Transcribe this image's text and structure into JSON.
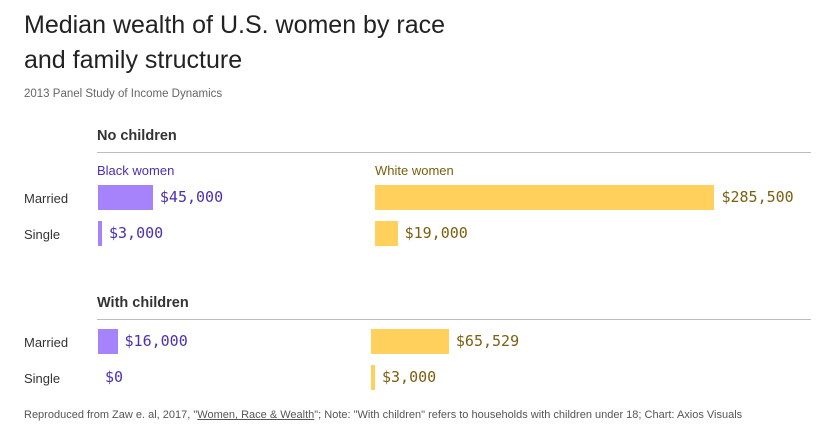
{
  "chart_data": {
    "type": "bar",
    "title": "Median wealth of U.S. women by race and family structure",
    "subtitle": "2013 Panel Study of Income Dynamics",
    "colors": {
      "black_women": "#a682fb",
      "white_women": "#ffd15c",
      "black_text": "#4d2fb0",
      "white_text": "#7a5f10"
    },
    "series": [
      {
        "name": "Black women",
        "color_key": "black_women"
      },
      {
        "name": "White women",
        "color_key": "white_women"
      }
    ],
    "panels": [
      {
        "title": "No children",
        "rows": [
          {
            "label": "Married",
            "values": [
              45000,
              285500
            ],
            "value_labels": [
              "$45,000",
              "$285,500"
            ]
          },
          {
            "label": "Single",
            "values": [
              3000,
              19000
            ],
            "value_labels": [
              "$3,000",
              "$19,000"
            ]
          }
        ]
      },
      {
        "title": "With children",
        "rows": [
          {
            "label": "Married",
            "values": [
              16000,
              65529
            ],
            "value_labels": [
              "$16,000",
              "$65,529"
            ]
          },
          {
            "label": "Single",
            "values": [
              0,
              3000
            ],
            "value_labels": [
              "$0",
              "$3,000"
            ]
          }
        ]
      }
    ],
    "footer": {
      "prefix": "Reproduced from Zaw e. al, 2017, \"",
      "link": "Women, Race & Wealth",
      "suffix": "\"; Note: \"With children\" refers to households with children under 18; Chart: Axios Visuals"
    }
  }
}
